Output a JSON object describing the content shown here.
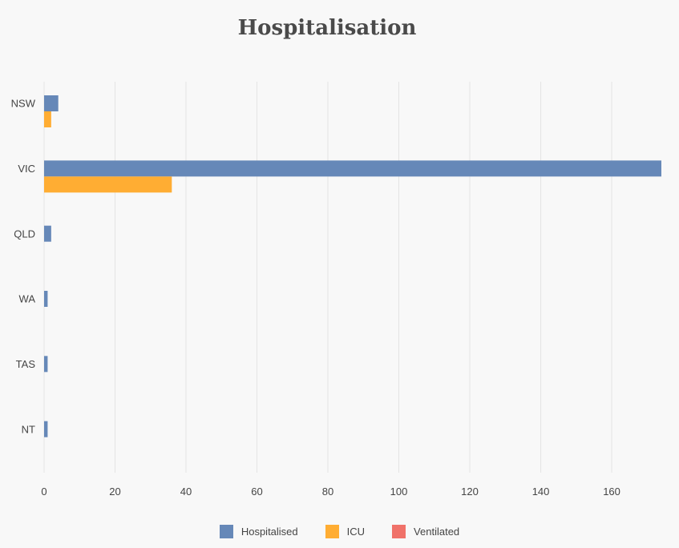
{
  "chart_data": {
    "type": "bar",
    "orientation": "horizontal",
    "title": "Hospitalisation",
    "categories": [
      "NSW",
      "VIC",
      "QLD",
      "WA",
      "TAS",
      "NT"
    ],
    "series": [
      {
        "name": "Hospitalised",
        "color": "#6688b8",
        "values": [
          4,
          174,
          2,
          1,
          1,
          1
        ]
      },
      {
        "name": "ICU",
        "color": "#ffad33",
        "values": [
          2,
          36,
          0,
          0,
          0,
          0
        ]
      },
      {
        "name": "Ventilated",
        "color": "#f0726a",
        "values": [
          0,
          0,
          0,
          0,
          0,
          0
        ]
      }
    ],
    "xticks": [
      0,
      20,
      40,
      60,
      80,
      100,
      120,
      140,
      160
    ],
    "xlim": [
      0,
      174
    ],
    "grid": true,
    "legend_position": "bottom"
  }
}
